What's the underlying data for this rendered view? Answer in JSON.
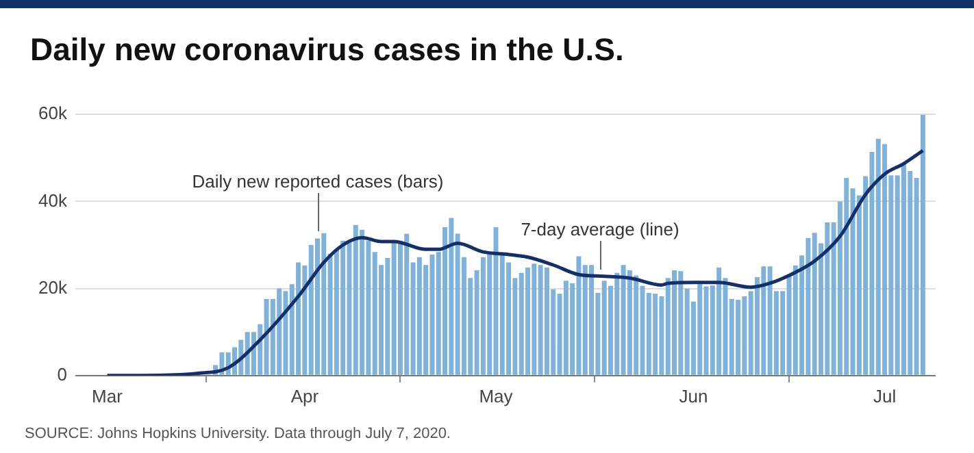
{
  "chart_data": {
    "type": "bar",
    "title": "Daily new coronavirus cases in the U.S.",
    "x": [
      "2020-03-01",
      "2020-03-02",
      "2020-03-03",
      "2020-03-04",
      "2020-03-05",
      "2020-03-06",
      "2020-03-07",
      "2020-03-08",
      "2020-03-09",
      "2020-03-10",
      "2020-03-11",
      "2020-03-12",
      "2020-03-13",
      "2020-03-14",
      "2020-03-15",
      "2020-03-16",
      "2020-03-17",
      "2020-03-18",
      "2020-03-19",
      "2020-03-20",
      "2020-03-21",
      "2020-03-22",
      "2020-03-23",
      "2020-03-24",
      "2020-03-25",
      "2020-03-26",
      "2020-03-27",
      "2020-03-28",
      "2020-03-29",
      "2020-03-30",
      "2020-03-31",
      "2020-04-01",
      "2020-04-02",
      "2020-04-03",
      "2020-04-04",
      "2020-04-05",
      "2020-04-06",
      "2020-04-07",
      "2020-04-08",
      "2020-04-09",
      "2020-04-10",
      "2020-04-11",
      "2020-04-12",
      "2020-04-13",
      "2020-04-14",
      "2020-04-15",
      "2020-04-16",
      "2020-04-17",
      "2020-04-18",
      "2020-04-19",
      "2020-04-20",
      "2020-04-21",
      "2020-04-22",
      "2020-04-23",
      "2020-04-24",
      "2020-04-25",
      "2020-04-26",
      "2020-04-27",
      "2020-04-28",
      "2020-04-29",
      "2020-04-30",
      "2020-05-01",
      "2020-05-02",
      "2020-05-03",
      "2020-05-04",
      "2020-05-05",
      "2020-05-06",
      "2020-05-07",
      "2020-05-08",
      "2020-05-09",
      "2020-05-10",
      "2020-05-11",
      "2020-05-12",
      "2020-05-13",
      "2020-05-14",
      "2020-05-15",
      "2020-05-16",
      "2020-05-17",
      "2020-05-18",
      "2020-05-19",
      "2020-05-20",
      "2020-05-21",
      "2020-05-22",
      "2020-05-23",
      "2020-05-24",
      "2020-05-25",
      "2020-05-26",
      "2020-05-27",
      "2020-05-28",
      "2020-05-29",
      "2020-05-30",
      "2020-05-31",
      "2020-06-01",
      "2020-06-02",
      "2020-06-03",
      "2020-06-04",
      "2020-06-05",
      "2020-06-06",
      "2020-06-07",
      "2020-06-08",
      "2020-06-09",
      "2020-06-10",
      "2020-06-11",
      "2020-06-12",
      "2020-06-13",
      "2020-06-14",
      "2020-06-15",
      "2020-06-16",
      "2020-06-17",
      "2020-06-18",
      "2020-06-19",
      "2020-06-20",
      "2020-06-21",
      "2020-06-22",
      "2020-06-23",
      "2020-06-24",
      "2020-06-25",
      "2020-06-26",
      "2020-06-27",
      "2020-06-28",
      "2020-06-29",
      "2020-06-30",
      "2020-07-01",
      "2020-07-02",
      "2020-07-03",
      "2020-07-04",
      "2020-07-05",
      "2020-07-06",
      "2020-07-07"
    ],
    "series": [
      {
        "color": "#7fb2da",
        "values": [
          0,
          0,
          0,
          0,
          0,
          0,
          0,
          0,
          0,
          null,
          null,
          null,
          null,
          null,
          null,
          null,
          null,
          2400,
          5300,
          5300,
          6500,
          8200,
          10000,
          10000,
          11800,
          17600,
          17600,
          20000,
          19400,
          21000,
          26000,
          25300,
          30000,
          31500,
          32700,
          28000,
          29000,
          31000,
          31000,
          34600,
          33500,
          31000,
          28400,
          25400,
          27000,
          30800,
          31000,
          32600,
          26000,
          27200,
          25400,
          27800,
          28400,
          34100,
          36200,
          32600,
          27200,
          22400,
          24200,
          27200,
          28400,
          34100,
          28000,
          26000,
          22400,
          23600,
          24800,
          25700,
          25400,
          24800,
          19800,
          18800,
          21800,
          21200,
          27400,
          25400,
          25400,
          19000,
          21800,
          20600,
          23600,
          25400,
          24200,
          23000,
          20600,
          19000,
          18800,
          18200,
          22400,
          24200,
          24000,
          20000,
          17000,
          21000,
          20500,
          20700,
          24800,
          22400,
          17600,
          17400,
          18200,
          19400,
          22600,
          25100,
          25100,
          19400,
          19400,
          23000,
          25300,
          27600,
          31600,
          32800,
          30400,
          35200,
          35200,
          40000,
          45400,
          43000,
          41400,
          45800,
          51400,
          54400,
          53200,
          46000,
          46000,
          48500,
          47000,
          45400,
          59900
        ]
      },
      {
        "type": "line",
        "color": "#13306b",
        "x": [
          "2020-03-01",
          "2020-03-10",
          "2020-03-15",
          "2020-03-20",
          "2020-03-25",
          "2020-03-31",
          "2020-04-04",
          "2020-04-07",
          "2020-04-10",
          "2020-04-13",
          "2020-04-15",
          "2020-04-20",
          "2020-04-22",
          "2020-04-25",
          "2020-04-29",
          "2020-05-03",
          "2020-05-06",
          "2020-05-10",
          "2020-05-14",
          "2020-05-18",
          "2020-05-22",
          "2020-05-27",
          "2020-05-28",
          "2020-06-01",
          "2020-06-05",
          "2020-06-10",
          "2020-06-13",
          "2020-06-16",
          "2020-06-20",
          "2020-06-24",
          "2020-06-28",
          "2020-07-01",
          "2020-07-04",
          "2020-07-07"
        ],
        "values": [
          0,
          100,
          500,
          1800,
          8200,
          18200,
          26000,
          30000,
          31700,
          30800,
          30800,
          29000,
          29000,
          30400,
          28400,
          27800,
          27200,
          25400,
          23200,
          22800,
          22400,
          20800,
          21200,
          21400,
          21400,
          20300,
          21200,
          23000,
          26300,
          32000,
          41600,
          46300,
          48700,
          51700
        ]
      }
    ],
    "xlim": [
      "2020-02-25",
      "2020-07-09"
    ],
    "xticks": [
      {
        "value": "2020-03-01",
        "label": "Mar"
      },
      {
        "value": "2020-04-01",
        "label": "Apr"
      },
      {
        "value": "2020-05-01",
        "label": "May"
      },
      {
        "value": "2020-06-01",
        "label": "Jun"
      },
      {
        "value": "2020-07-01",
        "label": "Jul"
      }
    ],
    "ylim": [
      0,
      60000
    ],
    "yticks": [
      {
        "value": 0,
        "label": "0"
      },
      {
        "value": 20000,
        "label": "20k"
      },
      {
        "value": 40000,
        "label": "40k"
      },
      {
        "value": 60000,
        "label": "60k"
      }
    ],
    "grid": "y",
    "annotations": [
      "Daily new reported cases (bars)",
      "7-day average (line)",
      "SOURCE: Johns Hopkins University. Data through July 7, 2020."
    ]
  }
}
